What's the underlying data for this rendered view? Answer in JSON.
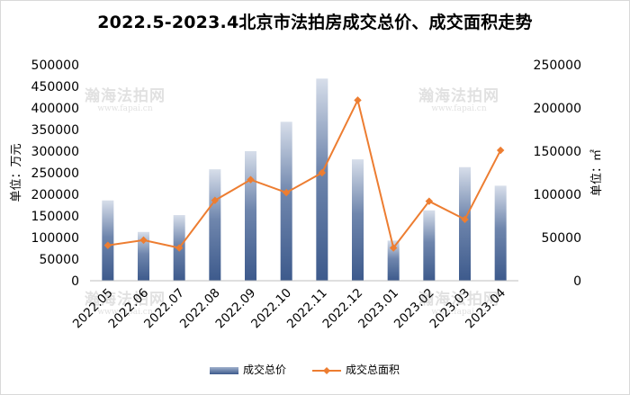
{
  "title": "2022.5-2023.4北京市法拍房成交总价、成交面积走势",
  "watermark": {
    "name": "瀚海法拍网",
    "url": "www.fapai.cn"
  },
  "colors": {
    "bar_top": "#d7deea",
    "bar_bottom": "#3d5a8c",
    "line": "#ed7d31"
  },
  "chart_data": {
    "type": "bar+line",
    "title": "2022.5-2023.4北京市法拍房成交总价、成交面积走势",
    "categories": [
      "2022.05",
      "2022.06",
      "2022.07",
      "2022.08",
      "2022.09",
      "2022.10",
      "2022.11",
      "2022.12",
      "2023.01",
      "2023.02",
      "2023.03",
      "2023.04"
    ],
    "series": [
      {
        "name": "成交总价",
        "type": "bar",
        "axis": "left",
        "values": [
          186000,
          113000,
          152000,
          258000,
          300000,
          368000,
          468000,
          281000,
          93000,
          163000,
          263000,
          220000
        ]
      },
      {
        "name": "成交总面积",
        "type": "line",
        "axis": "right",
        "values": [
          41000,
          47000,
          38000,
          93000,
          117000,
          102000,
          125000,
          209000,
          38000,
          92000,
          71000,
          151000
        ]
      }
    ],
    "y_left": {
      "label": "单位：万元",
      "min": 0,
      "max": 500000,
      "ticks": [
        "0",
        "50000",
        "100000",
        "150000",
        "200000",
        "250000",
        "300000",
        "350000",
        "400000",
        "450000",
        "500000"
      ]
    },
    "y_right": {
      "label": "单位：㎡",
      "min": 0,
      "max": 250000,
      "ticks": [
        "0",
        "50000",
        "100000",
        "150000",
        "200000",
        "250000"
      ]
    },
    "legend": [
      "成交总价",
      "成交总面积"
    ],
    "legend_position": "bottom",
    "grid": false
  }
}
